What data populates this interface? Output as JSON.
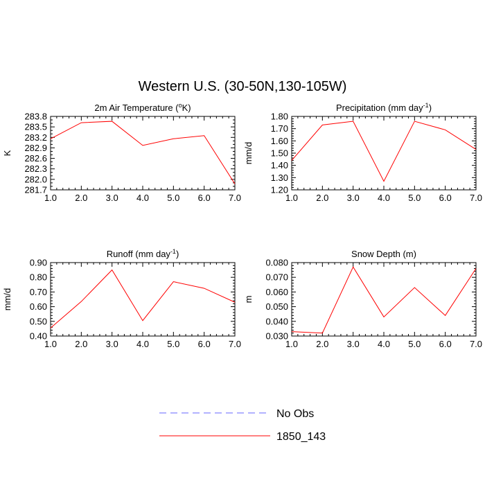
{
  "title": "Western U.S. (30-50N,130-105W)",
  "series_color": "#ff0000",
  "obs_color": "#6464ff",
  "legend": [
    {
      "label": "No Obs",
      "style": "dashed",
      "color": "#6464ff"
    },
    {
      "label": "1850_143",
      "style": "solid",
      "color": "#ff0000"
    }
  ],
  "chart_data": [
    {
      "type": "line",
      "title_pre": "2m Air Temperature (",
      "title_sup": "o",
      "title_post": "K)",
      "ylabel": "K",
      "x": [
        1,
        2,
        3,
        4,
        5,
        6,
        7
      ],
      "xticks": [
        "1.0",
        "2.0",
        "3.0",
        "4.0",
        "5.0",
        "6.0",
        "7.0"
      ],
      "xlim": [
        1,
        7
      ],
      "ylim": [
        281.7,
        283.8
      ],
      "yticks": [
        "281.7",
        "282.0",
        "282.3",
        "282.6",
        "282.9",
        "283.2",
        "283.5",
        "283.8"
      ],
      "yminor_step": 0.1,
      "series": [
        {
          "name": "1850_143",
          "values": [
            283.16,
            283.62,
            283.66,
            282.97,
            283.16,
            283.25,
            281.87
          ]
        }
      ]
    },
    {
      "type": "line",
      "title_pre": "Precipitation (mm day",
      "title_sup": "-1",
      "title_post": ")",
      "ylabel": "mm/d",
      "x": [
        1,
        2,
        3,
        4,
        5,
        6,
        7
      ],
      "xticks": [
        "1.0",
        "2.0",
        "3.0",
        "4.0",
        "5.0",
        "6.0",
        "7.0"
      ],
      "xlim": [
        1,
        7
      ],
      "ylim": [
        1.2,
        1.8
      ],
      "yticks": [
        "1.20",
        "1.30",
        "1.40",
        "1.50",
        "1.60",
        "1.70",
        "1.80"
      ],
      "yminor_step": 0.02,
      "series": [
        {
          "name": "1850_143",
          "values": [
            1.44,
            1.73,
            1.76,
            1.27,
            1.76,
            1.69,
            1.53
          ]
        }
      ]
    },
    {
      "type": "line",
      "title_pre": "Runoff (mm day",
      "title_sup": "-1",
      "title_post": ")",
      "ylabel": "mm/d",
      "x": [
        1,
        2,
        3,
        4,
        5,
        6,
        7
      ],
      "xticks": [
        "1.0",
        "2.0",
        "3.0",
        "4.0",
        "5.0",
        "6.0",
        "7.0"
      ],
      "xlim": [
        1,
        7
      ],
      "ylim": [
        0.4,
        0.9
      ],
      "yticks": [
        "0.40",
        "0.50",
        "0.60",
        "0.70",
        "0.80",
        "0.90"
      ],
      "yminor_step": 0.02,
      "series": [
        {
          "name": "1850_143",
          "values": [
            0.455,
            0.635,
            0.85,
            0.505,
            0.77,
            0.725,
            0.63
          ]
        }
      ]
    },
    {
      "type": "line",
      "title_pre": "Snow Depth (m)",
      "title_sup": "",
      "title_post": "",
      "ylabel": "m",
      "x": [
        1,
        2,
        3,
        4,
        5,
        6,
        7
      ],
      "xticks": [
        "1.0",
        "2.0",
        "3.0",
        "4.0",
        "5.0",
        "6.0",
        "7.0"
      ],
      "xlim": [
        1,
        7
      ],
      "ylim": [
        0.03,
        0.08
      ],
      "yticks": [
        "0.030",
        "0.040",
        "0.050",
        "0.060",
        "0.070",
        "0.080"
      ],
      "yminor_step": 0.002,
      "series": [
        {
          "name": "1850_143",
          "values": [
            0.033,
            0.032,
            0.077,
            0.043,
            0.063,
            0.044,
            0.076
          ]
        }
      ]
    }
  ]
}
